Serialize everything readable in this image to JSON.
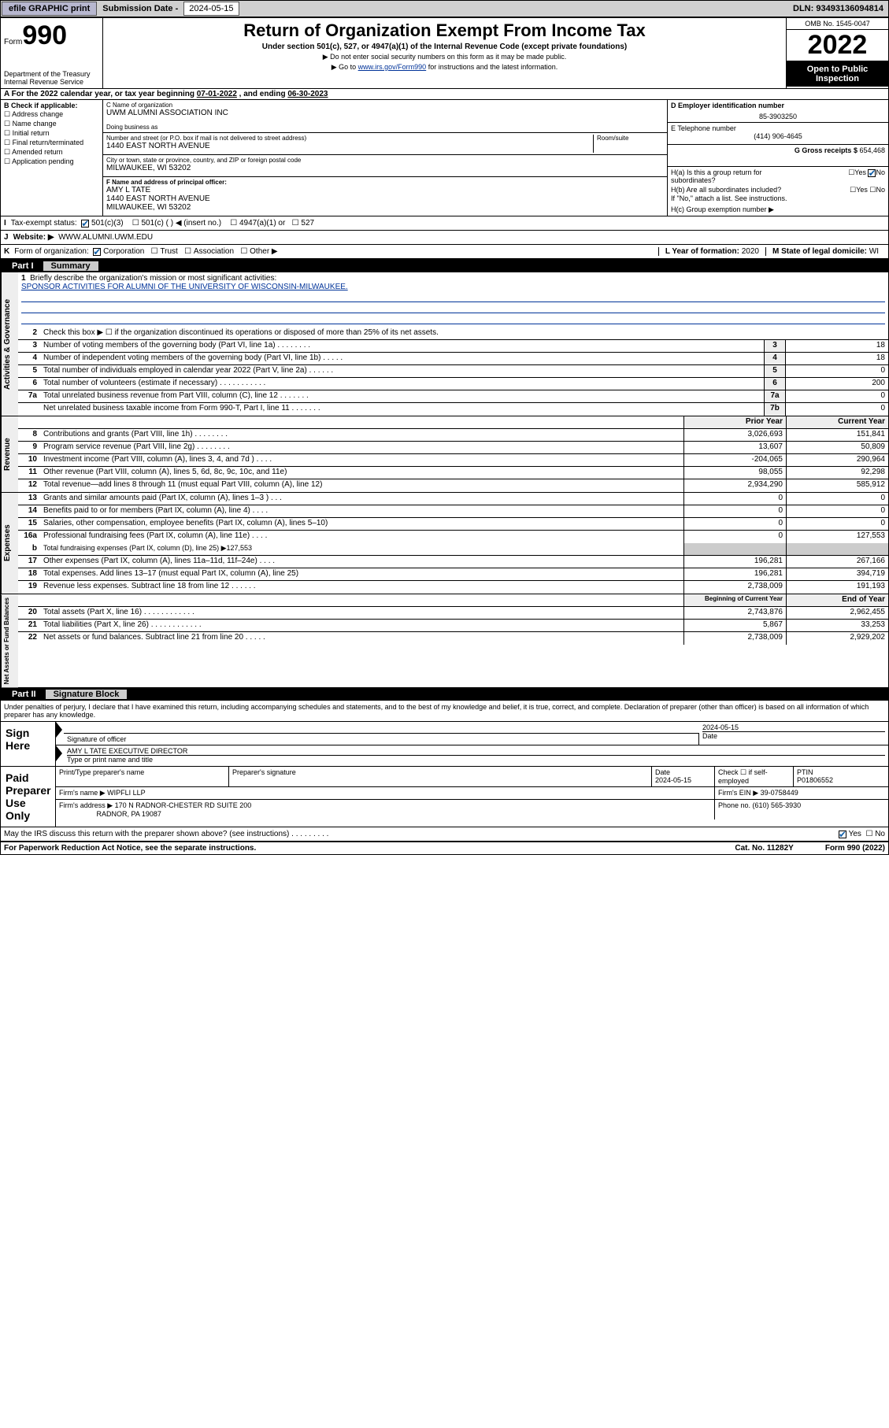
{
  "topbar": {
    "efile": "efile GRAPHIC print",
    "subdate_lbl": "Submission Date - ",
    "subdate": "2024-05-15",
    "dln_lbl": "DLN: ",
    "dln": "93493136094814"
  },
  "header": {
    "form_word": "Form",
    "form_num": "990",
    "dept": "Department of the Treasury\nInternal Revenue Service",
    "title": "Return of Organization Exempt From Income Tax",
    "sub1": "Under section 501(c), 527, or 4947(a)(1) of the Internal Revenue Code (except private foundations)",
    "sub2": "▶ Do not enter social security numbers on this form as it may be made public.",
    "sub3_pre": "▶ Go to ",
    "sub3_link": "www.irs.gov/Form990",
    "sub3_post": " for instructions and the latest information.",
    "omb": "OMB No. 1545-0047",
    "year": "2022",
    "inspect": "Open to Public Inspection"
  },
  "lineA": {
    "text_pre": "A For the 2022 calendar year, or tax year beginning ",
    "begin": "07-01-2022",
    "mid": " , and ending ",
    "end": "06-30-2023"
  },
  "colB": {
    "head": "B Check if applicable:",
    "items": [
      "Address change",
      "Name change",
      "Initial return",
      "Final return/terminated",
      "Amended return",
      "Application pending"
    ]
  },
  "colC": {
    "name_lbl": "C Name of organization",
    "name": "UWM ALUMNI ASSOCIATION INC",
    "dba_lbl": "Doing business as",
    "dba": "",
    "street_lbl": "Number and street (or P.O. box if mail is not delivered to street address)",
    "room_lbl": "Room/suite",
    "street": "1440 EAST NORTH AVENUE",
    "city_lbl": "City or town, state or province, country, and ZIP or foreign postal code",
    "city": "MILWAUKEE, WI  53202",
    "f_lbl": "F Name and address of principal officer:",
    "f_name": "AMY L TATE",
    "f_addr1": "1440 EAST NORTH AVENUE",
    "f_addr2": "MILWAUKEE, WI  53202"
  },
  "colDE": {
    "d_lbl": "D Employer identification number",
    "d_val": "85-3903250",
    "e_lbl": "E Telephone number",
    "e_val": "(414) 906-4645",
    "g_lbl": "G Gross receipts $ ",
    "g_val": "654,468",
    "ha1": "H(a)  Is this a group return for",
    "ha2": "subordinates?",
    "hb1": "H(b)  Are all subordinates included?",
    "hb2": "If \"No,\" attach a list. See instructions.",
    "hc": "H(c)  Group exemption number ▶",
    "yes": "Yes",
    "no": "No"
  },
  "rowI": {
    "lbl": "I",
    "text": "Tax-exempt status:",
    "opts": [
      "501(c)(3)",
      "501(c) (  ) ◀ (insert no.)",
      "4947(a)(1) or",
      "527"
    ]
  },
  "rowJ": {
    "lbl": "J",
    "text": "Website: ▶",
    "val": "WWW.ALUMNI.UWM.EDU"
  },
  "rowK": {
    "lbl": "K",
    "text": "Form of organization:",
    "opts": [
      "Corporation",
      "Trust",
      "Association",
      "Other ▶"
    ],
    "l_lbl": "L Year of formation: ",
    "l_val": "2020",
    "m_lbl": "M State of legal domicile: ",
    "m_val": "WI"
  },
  "part1": {
    "num": "Part I",
    "title": "Summary"
  },
  "summary": {
    "line1_lbl": "1",
    "line1_text": "Briefly describe the organization's mission or most significant activities:",
    "line1_val": "SPONSOR ACTIVITIES FOR ALUMNI OF THE UNIVERSITY OF WISCONSIN-MILWAUKEE.",
    "line2": "Check this box ▶ ☐  if the organization discontinued its operations or disposed of more than 25% of its net assets.",
    "gov_rows": [
      {
        "n": "3",
        "d": "Number of voting members of the governing body (Part VI, line 1a)   .     .     .     .     .     .     .     .",
        "bn": "3",
        "v": "18"
      },
      {
        "n": "4",
        "d": "Number of independent voting members of the governing body (Part VI, line 1b)   .     .     .     .     .",
        "bn": "4",
        "v": "18"
      },
      {
        "n": "5",
        "d": "Total number of individuals employed in calendar year 2022 (Part V, line 2a)   .     .     .     .     .     .",
        "bn": "5",
        "v": "0"
      },
      {
        "n": "6",
        "d": "Total number of volunteers (estimate if necessary)   .     .     .     .     .     .     .     .     .     .     .",
        "bn": "6",
        "v": "200"
      },
      {
        "n": "7a",
        "d": "Total unrelated business revenue from Part VIII, column (C), line 12   .     .     .     .     .     .     .",
        "bn": "7a",
        "v": "0"
      },
      {
        "n": "",
        "d": "Net unrelated business taxable income from Form 990-T, Part I, line 11   .     .     .     .     .     .     .",
        "bn": "7b",
        "v": "0"
      }
    ],
    "col_hdr_prior": "Prior Year",
    "col_hdr_curr": "Current Year",
    "rev_rows": [
      {
        "n": "8",
        "d": "Contributions and grants (Part VIII, line 1h)   .     .     .     .     .     .     .     .",
        "p": "3,026,693",
        "c": "151,841"
      },
      {
        "n": "9",
        "d": "Program service revenue (Part VIII, line 2g)   .     .     .     .     .     .     .     .",
        "p": "13,607",
        "c": "50,809"
      },
      {
        "n": "10",
        "d": "Investment income (Part VIII, column (A), lines 3, 4, and 7d )   .     .     .     .",
        "p": "-204,065",
        "c": "290,964"
      },
      {
        "n": "11",
        "d": "Other revenue (Part VIII, column (A), lines 5, 6d, 8c, 9c, 10c, and 11e)",
        "p": "98,055",
        "c": "92,298"
      },
      {
        "n": "12",
        "d": "Total revenue—add lines 8 through 11 (must equal Part VIII, column (A), line 12)",
        "p": "2,934,290",
        "c": "585,912"
      }
    ],
    "exp_rows": [
      {
        "n": "13",
        "d": "Grants and similar amounts paid (Part IX, column (A), lines 1–3 )   .     .     .",
        "p": "0",
        "c": "0"
      },
      {
        "n": "14",
        "d": "Benefits paid to or for members (Part IX, column (A), line 4)   .     .     .     .",
        "p": "0",
        "c": "0"
      },
      {
        "n": "15",
        "d": "Salaries, other compensation, employee benefits (Part IX, column (A), lines 5–10)",
        "p": "0",
        "c": "0"
      },
      {
        "n": "16a",
        "d": "Professional fundraising fees (Part IX, column (A), line 11e)   .     .     .     .",
        "p": "0",
        "c": "127,553"
      }
    ],
    "line16b_n": "b",
    "line16b_d": "Total fundraising expenses (Part IX, column (D), line 25) ▶127,553",
    "exp_rows2": [
      {
        "n": "17",
        "d": "Other expenses (Part IX, column (A), lines 11a–11d, 11f–24e)   .     .     .     .",
        "p": "196,281",
        "c": "267,166"
      },
      {
        "n": "18",
        "d": "Total expenses. Add lines 13–17 (must equal Part IX, column (A), line 25)",
        "p": "196,281",
        "c": "394,719"
      },
      {
        "n": "19",
        "d": "Revenue less expenses. Subtract line 18 from line 12   .     .     .     .     .     .",
        "p": "2,738,009",
        "c": "191,193"
      }
    ],
    "col_hdr_boy": "Beginning of Current Year",
    "col_hdr_eoy": "End of Year",
    "na_rows": [
      {
        "n": "20",
        "d": "Total assets (Part X, line 16)   .     .     .     .     .     .     .     .     .     .     .     .",
        "p": "2,743,876",
        "c": "2,962,455"
      },
      {
        "n": "21",
        "d": "Total liabilities (Part X, line 26)   .     .     .     .     .     .     .     .     .     .     .     .",
        "p": "5,867",
        "c": "33,253"
      },
      {
        "n": "22",
        "d": "Net assets or fund balances. Subtract line 21 from line 20   .     .     .     .     .",
        "p": "2,738,009",
        "c": "2,929,202"
      }
    ]
  },
  "vtabs": {
    "gov": "Activities & Governance",
    "rev": "Revenue",
    "exp": "Expenses",
    "na": "Net Assets or Fund Balances"
  },
  "part2": {
    "num": "Part II",
    "title": "Signature Block"
  },
  "sig": {
    "decl": "Under penalties of perjury, I declare that I have examined this return, including accompanying schedules and statements, and to the best of my knowledge and belief, it is true, correct, and complete. Declaration of preparer (other than officer) is based on all information of which preparer has any knowledge.",
    "sign_here": "Sign Here",
    "sig_officer": "Signature of officer",
    "date_lbl": "Date",
    "date_val": "2024-05-15",
    "officer": "AMY L TATE  EXECUTIVE DIRECTOR",
    "type_name": "Type or print name and title",
    "paid_prep": "Paid Preparer Use Only",
    "prep_name_lbl": "Print/Type preparer's name",
    "prep_sig_lbl": "Preparer's signature",
    "prep_date_lbl": "Date",
    "prep_date": "2024-05-15",
    "self_emp": "Check ☐ if self-employed",
    "ptin_lbl": "PTIN",
    "ptin": "P01806552",
    "firm_name_lbl": "Firm's name    ▶",
    "firm_name": "WIPFLI LLP",
    "firm_ein_lbl": "Firm's EIN ▶",
    "firm_ein": "39-0758449",
    "firm_addr_lbl": "Firm's address ▶",
    "firm_addr1": "170 N RADNOR-CHESTER RD SUITE 200",
    "firm_addr2": "RADNOR, PA  19087",
    "phone_lbl": "Phone no. ",
    "phone": "(610) 565-3930",
    "may_irs": "May the IRS discuss this return with the preparer shown above? (see instructions)   .     .     .     .     .     .     .     .     .",
    "yes": "Yes",
    "no": "No"
  },
  "footer": {
    "pra": "For Paperwork Reduction Act Notice, see the separate instructions.",
    "cat": "Cat. No. 11282Y",
    "form": "Form 990 (2022)"
  },
  "colors": {
    "link": "#003399",
    "check": "#1360a8",
    "topbtn": "#b7b7cf",
    "grey": "#eeeeee"
  }
}
